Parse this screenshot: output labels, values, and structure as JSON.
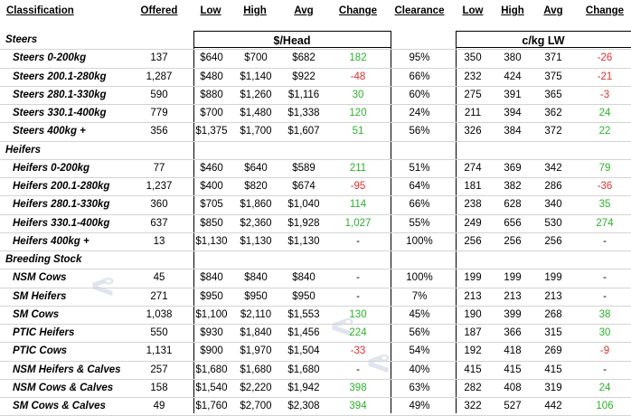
{
  "headers": {
    "classification": "Classification",
    "offered": "Offered",
    "low": "Low",
    "high": "High",
    "avg": "Avg",
    "change": "Change",
    "clearance": "Clearance",
    "low_kg": "Low",
    "high_kg": "High",
    "avg_kg": "Avg",
    "change_kg": "Change"
  },
  "subheaders": {
    "head": "$/Head",
    "kg": "c/kg LW"
  },
  "groups": [
    {
      "label": "Steers",
      "rows": [
        {
          "name": "Steers 0-200kg",
          "offered": "137",
          "low": "$640",
          "high": "$700",
          "avg": "$682",
          "change": "182",
          "clearance": "95%",
          "low_kg": "350",
          "high_kg": "380",
          "avg_kg": "371",
          "change_kg": "-26"
        },
        {
          "name": "Steers 200.1-280kg",
          "offered": "1,287",
          "low": "$480",
          "high": "$1,140",
          "avg": "$922",
          "change": "-48",
          "clearance": "66%",
          "low_kg": "232",
          "high_kg": "424",
          "avg_kg": "375",
          "change_kg": "-21"
        },
        {
          "name": "Steers 280.1-330kg",
          "offered": "590",
          "low": "$880",
          "high": "$1,260",
          "avg": "$1,116",
          "change": "30",
          "clearance": "60%",
          "low_kg": "275",
          "high_kg": "391",
          "avg_kg": "365",
          "change_kg": "-3"
        },
        {
          "name": "Steers 330.1-400kg",
          "offered": "779",
          "low": "$700",
          "high": "$1,480",
          "avg": "$1,338",
          "change": "120",
          "clearance": "24%",
          "low_kg": "211",
          "high_kg": "394",
          "avg_kg": "362",
          "change_kg": "24"
        },
        {
          "name": "Steers 400kg +",
          "offered": "356",
          "low": "$1,375",
          "high": "$1,700",
          "avg": "$1,607",
          "change": "51",
          "clearance": "56%",
          "low_kg": "326",
          "high_kg": "384",
          "avg_kg": "372",
          "change_kg": "22"
        }
      ]
    },
    {
      "label": "Heifers",
      "rows": [
        {
          "name": "Heifers 0-200kg",
          "offered": "77",
          "low": "$460",
          "high": "$640",
          "avg": "$589",
          "change": "211",
          "clearance": "51%",
          "low_kg": "274",
          "high_kg": "369",
          "avg_kg": "342",
          "change_kg": "79"
        },
        {
          "name": "Heifers 200.1-280kg",
          "offered": "1,237",
          "low": "$400",
          "high": "$820",
          "avg": "$674",
          "change": "-95",
          "clearance": "64%",
          "low_kg": "181",
          "high_kg": "382",
          "avg_kg": "286",
          "change_kg": "-36"
        },
        {
          "name": "Heifers 280.1-330kg",
          "offered": "360",
          "low": "$705",
          "high": "$1,860",
          "avg": "$1,040",
          "change": "114",
          "clearance": "66%",
          "low_kg": "238",
          "high_kg": "628",
          "avg_kg": "340",
          "change_kg": "35"
        },
        {
          "name": "Heifers 330.1-400kg",
          "offered": "637",
          "low": "$850",
          "high": "$2,360",
          "avg": "$1,928",
          "change": "1,027",
          "clearance": "55%",
          "low_kg": "249",
          "high_kg": "656",
          "avg_kg": "530",
          "change_kg": "274"
        },
        {
          "name": "Heifers 400kg +",
          "offered": "13",
          "low": "$1,130",
          "high": "$1,130",
          "avg": "$1,130",
          "change": "-",
          "clearance": "100%",
          "low_kg": "256",
          "high_kg": "256",
          "avg_kg": "256",
          "change_kg": "-"
        }
      ]
    },
    {
      "label": "Breeding Stock",
      "rows": [
        {
          "name": "NSM Cows",
          "offered": "45",
          "low": "$840",
          "high": "$840",
          "avg": "$840",
          "change": "-",
          "clearance": "100%",
          "low_kg": "199",
          "high_kg": "199",
          "avg_kg": "199",
          "change_kg": "-"
        },
        {
          "name": "SM Heifers",
          "offered": "271",
          "low": "$950",
          "high": "$950",
          "avg": "$950",
          "change": "-",
          "clearance": "7%",
          "low_kg": "213",
          "high_kg": "213",
          "avg_kg": "213",
          "change_kg": "-"
        },
        {
          "name": "SM Cows",
          "offered": "1,038",
          "low": "$1,100",
          "high": "$2,110",
          "avg": "$1,553",
          "change": "130",
          "clearance": "45%",
          "low_kg": "190",
          "high_kg": "399",
          "avg_kg": "268",
          "change_kg": "38"
        },
        {
          "name": "PTIC Heifers",
          "offered": "550",
          "low": "$930",
          "high": "$1,840",
          "avg": "$1,456",
          "change": "224",
          "clearance": "56%",
          "low_kg": "187",
          "high_kg": "366",
          "avg_kg": "315",
          "change_kg": "30"
        },
        {
          "name": "PTIC Cows",
          "offered": "1,131",
          "low": "$900",
          "high": "$1,970",
          "avg": "$1,504",
          "change": "-33",
          "clearance": "54%",
          "low_kg": "192",
          "high_kg": "418",
          "avg_kg": "269",
          "change_kg": "-9"
        },
        {
          "name": "NSM Heifers & Calves",
          "offered": "257",
          "low": "$1,680",
          "high": "$1,680",
          "avg": "$1,680",
          "change": "-",
          "clearance": "40%",
          "low_kg": "415",
          "high_kg": "415",
          "avg_kg": "415",
          "change_kg": "-"
        },
        {
          "name": "NSM Cows & Calves",
          "offered": "158",
          "low": "$1,540",
          "high": "$2,220",
          "avg": "$1,942",
          "change": "398",
          "clearance": "63%",
          "low_kg": "282",
          "high_kg": "408",
          "avg_kg": "319",
          "change_kg": "24"
        },
        {
          "name": "SM Cows & Calves",
          "offered": "49",
          "low": "$1,760",
          "high": "$2,700",
          "avg": "$2,308",
          "change": "394",
          "clearance": "49%",
          "low_kg": "322",
          "high_kg": "527",
          "avg_kg": "442",
          "change_kg": "106"
        }
      ]
    }
  ],
  "colors": {
    "positive": "#2bb32b",
    "negative": "#e03030",
    "gridline": "#d4d4d4",
    "watermark": "#dfe5ee"
  },
  "watermark_icon": "chart-swoosh-logo"
}
